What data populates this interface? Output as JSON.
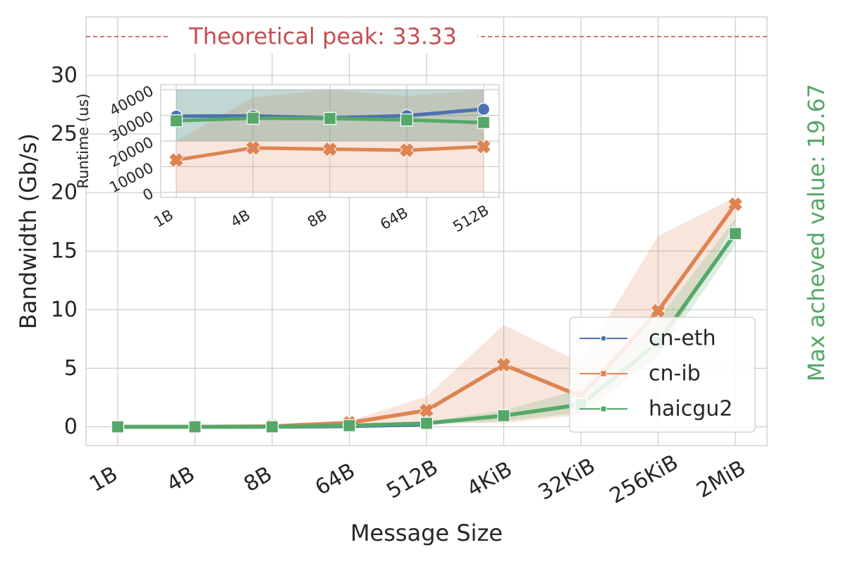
{
  "chart_data": [
    {
      "type": "line",
      "xlabel": "Message Size",
      "ylabel": "Bandwidth (Gb/s)",
      "categories": [
        "1B",
        "4B",
        "8B",
        "64B",
        "512B",
        "4KiB",
        "32KiB",
        "256KiB",
        "2MiB"
      ],
      "ylim": [
        -1.6,
        35
      ],
      "yticks": [
        0,
        5,
        10,
        15,
        20,
        25,
        30
      ],
      "grid": true,
      "legend_position": "lower-right",
      "reference_line": {
        "value": 33.33,
        "label": "Theoretical peak: 33.33",
        "color": "#c44e52"
      },
      "side_annotation": {
        "label": "Max acheved value: 19.67",
        "color": "#55a868"
      },
      "series": [
        {
          "name": "cn-eth",
          "color": "#4c72b0",
          "marker": "circle",
          "values": [
            0.0,
            0.0,
            0.0,
            0.05,
            0.2,
            null,
            null,
            null,
            null
          ],
          "band_low": [
            null,
            null,
            null,
            null,
            null,
            null,
            null,
            null,
            null
          ],
          "band_high": [
            null,
            null,
            null,
            null,
            null,
            null,
            null,
            null,
            null
          ]
        },
        {
          "name": "cn-ib",
          "color": "#dd8452",
          "marker": "x",
          "values": [
            0.0,
            0.0,
            0.05,
            0.35,
            1.4,
            5.3,
            2.6,
            9.9,
            19.0
          ],
          "band_low": [
            0.0,
            0.0,
            0.0,
            0.2,
            0.4,
            0.3,
            1.0,
            6.0,
            17.5
          ],
          "band_high": [
            0.0,
            0.0,
            0.1,
            0.5,
            2.6,
            8.7,
            5.5,
            16.3,
            19.6
          ]
        },
        {
          "name": "haicgu2",
          "color": "#55a868",
          "marker": "square",
          "values": [
            0.0,
            0.0,
            0.0,
            0.1,
            0.3,
            0.95,
            1.9,
            7.2,
            16.5
          ],
          "band_low": [
            0.0,
            0.0,
            0.0,
            0.05,
            0.15,
            0.5,
            1.2,
            6.0,
            15.5
          ],
          "band_high": [
            0.0,
            0.0,
            0.05,
            0.15,
            0.45,
            1.4,
            3.2,
            9.2,
            17.8
          ]
        }
      ]
    },
    {
      "type": "line",
      "xlabel": "",
      "ylabel": "Runtime (us)",
      "categories": [
        "1B",
        "4B",
        "8B",
        "64B",
        "512B"
      ],
      "ylim": [
        -2000,
        42000
      ],
      "yticks": [
        0,
        10000,
        20000,
        30000,
        40000
      ],
      "grid": true,
      "series": [
        {
          "name": "cn-eth",
          "color": "#4c72b0",
          "marker": "circle",
          "values": [
            29700,
            29800,
            28900,
            29900,
            32400
          ],
          "band_low": [
            20000,
            20000,
            20000,
            20000,
            20000
          ],
          "band_high": [
            40000,
            40000,
            40000,
            40000,
            40000
          ]
        },
        {
          "name": "cn-ib",
          "color": "#dd8452",
          "marker": "x",
          "values": [
            12600,
            17300,
            16800,
            16400,
            17800
          ],
          "band_low": [
            0,
            0,
            0,
            0,
            0
          ],
          "band_high": [
            20000,
            37000,
            40000,
            37500,
            40000
          ]
        },
        {
          "name": "haicgu2",
          "color": "#55a868",
          "marker": "square",
          "values": [
            27900,
            28900,
            28800,
            28200,
            27200
          ],
          "band_low": [
            20000,
            20000,
            20000,
            20000,
            20000
          ],
          "band_high": [
            40000,
            40000,
            40000,
            40000,
            40000
          ]
        }
      ]
    }
  ]
}
